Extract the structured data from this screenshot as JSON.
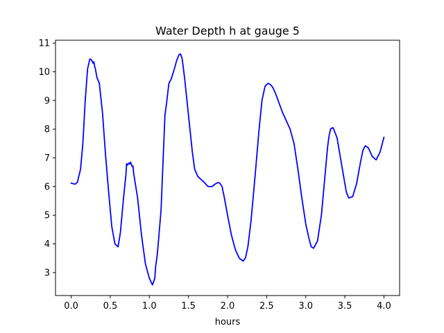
{
  "chart_data": {
    "type": "line",
    "title": "Water Depth h at gauge 5",
    "xlabel": "hours",
    "ylabel": "",
    "xlim": [
      -0.2,
      4.2
    ],
    "ylim": [
      2.2,
      11.1
    ],
    "xticks": [
      0.0,
      0.5,
      1.0,
      1.5,
      2.0,
      2.5,
      3.0,
      3.5,
      4.0
    ],
    "xtick_labels": [
      "0.0",
      "0.5",
      "1.0",
      "1.5",
      "2.0",
      "2.5",
      "3.0",
      "3.5",
      "4.0"
    ],
    "yticks": [
      3,
      4,
      5,
      6,
      7,
      8,
      9,
      10,
      11
    ],
    "ytick_labels": [
      "3",
      "4",
      "5",
      "6",
      "7",
      "8",
      "9",
      "10",
      "11"
    ],
    "grid": false,
    "legend": "none",
    "line_color": "#0000ff",
    "series": [
      {
        "x": [
          0.0,
          0.05,
          0.08,
          0.12,
          0.15,
          0.18,
          0.21,
          0.24,
          0.26,
          0.28,
          0.29,
          0.3,
          0.31,
          0.33,
          0.36,
          0.4,
          0.44,
          0.48,
          0.52,
          0.56,
          0.6,
          0.63,
          0.67,
          0.7,
          0.71,
          0.72,
          0.74,
          0.75,
          0.76,
          0.78,
          0.79,
          0.8,
          0.85,
          0.9,
          0.95,
          1.0,
          1.04,
          1.07,
          1.08,
          1.1,
          1.12,
          1.15,
          1.18,
          1.2,
          1.22,
          1.25,
          1.28,
          1.32,
          1.35,
          1.38,
          1.4,
          1.42,
          1.45,
          1.5,
          1.55,
          1.58,
          1.62,
          1.66,
          1.7,
          1.75,
          1.8,
          1.85,
          1.88,
          1.9,
          1.93,
          1.96,
          2.0,
          2.05,
          2.1,
          2.15,
          2.2,
          2.23,
          2.26,
          2.3,
          2.35,
          2.4,
          2.44,
          2.48,
          2.5,
          2.52,
          2.55,
          2.58,
          2.62,
          2.66,
          2.7,
          2.75,
          2.8,
          2.85,
          2.9,
          2.95,
          3.0,
          3.04,
          3.07,
          3.1,
          3.15,
          3.2,
          3.25,
          3.28,
          3.3,
          3.32,
          3.35,
          3.4,
          3.45,
          3.5,
          3.52,
          3.55,
          3.6,
          3.65,
          3.7,
          3.73,
          3.76,
          3.8,
          3.85,
          3.9,
          3.95,
          4.0
        ],
        "y": [
          6.12,
          6.08,
          6.15,
          6.6,
          7.5,
          9.0,
          10.1,
          10.45,
          10.42,
          10.3,
          10.35,
          10.2,
          10.1,
          9.8,
          9.6,
          8.6,
          7.1,
          5.8,
          4.6,
          4.0,
          3.9,
          4.4,
          5.6,
          6.4,
          6.8,
          6.75,
          6.82,
          6.78,
          6.85,
          6.7,
          6.72,
          6.45,
          5.6,
          4.3,
          3.3,
          2.8,
          2.57,
          2.8,
          3.2,
          3.6,
          4.2,
          5.2,
          7.2,
          8.5,
          8.9,
          9.6,
          9.75,
          10.1,
          10.4,
          10.6,
          10.62,
          10.45,
          9.8,
          8.5,
          7.2,
          6.6,
          6.35,
          6.25,
          6.15,
          6.0,
          6.0,
          6.1,
          6.14,
          6.12,
          6.0,
          5.6,
          5.0,
          4.3,
          3.8,
          3.5,
          3.4,
          3.52,
          3.9,
          4.8,
          6.3,
          7.9,
          9.0,
          9.5,
          9.55,
          9.6,
          9.55,
          9.45,
          9.2,
          8.9,
          8.6,
          8.3,
          8.0,
          7.5,
          6.6,
          5.6,
          4.7,
          4.2,
          3.9,
          3.85,
          4.1,
          5.0,
          6.5,
          7.4,
          7.8,
          8.02,
          8.05,
          7.7,
          6.9,
          6.1,
          5.8,
          5.6,
          5.65,
          6.1,
          6.85,
          7.25,
          7.42,
          7.35,
          7.05,
          6.93,
          7.2,
          7.72
        ]
      }
    ]
  }
}
